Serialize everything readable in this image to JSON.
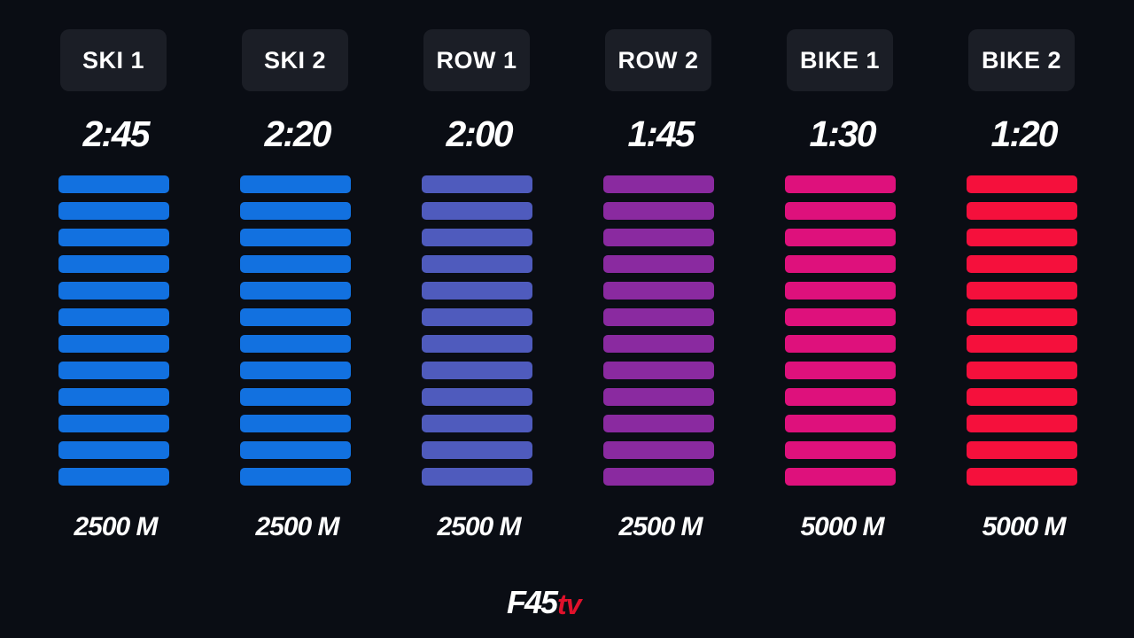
{
  "stations": [
    {
      "label": "SKI 1",
      "time": "2:45",
      "distance": "2500 M",
      "color": "#1271e0"
    },
    {
      "label": "SKI 2",
      "time": "2:20",
      "distance": "2500 M",
      "color": "#1271e0"
    },
    {
      "label": "ROW 1",
      "time": "2:00",
      "distance": "2500 M",
      "color": "#4f5bbd"
    },
    {
      "label": "ROW 2",
      "time": "1:45",
      "distance": "2500 M",
      "color": "#8a2aa0"
    },
    {
      "label": "BIKE 1",
      "time": "1:30",
      "distance": "5000 M",
      "color": "#de117c"
    },
    {
      "label": "BIKE 2",
      "time": "1:20",
      "distance": "5000 M",
      "color": "#f5103c"
    }
  ],
  "bars_per_station": 12,
  "logo": {
    "brand": "F45",
    "suffix": "tv",
    "brand_color": "#ffffff",
    "suffix_color": "#e0112b"
  },
  "background_color": "#0a0d14"
}
